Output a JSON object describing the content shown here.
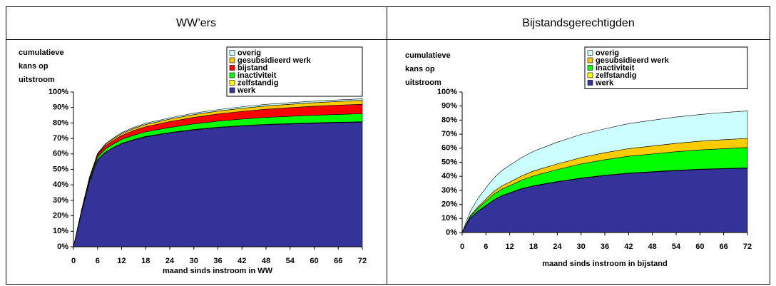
{
  "chart_data": [
    {
      "type": "stacked_area",
      "title": "WW’ers",
      "ylabel": [
        "cumulatieve",
        "kans op",
        "uitstroom"
      ],
      "xlabel": "maand sinds instroom in WW",
      "x": [
        0,
        2,
        4,
        6,
        8,
        10,
        12,
        15,
        18,
        24,
        30,
        36,
        42,
        48,
        54,
        60,
        66,
        72
      ],
      "xlim": [
        0,
        72
      ],
      "xticks": [
        0,
        6,
        12,
        18,
        24,
        30,
        36,
        42,
        48,
        54,
        60,
        66,
        72
      ],
      "ylim": [
        0,
        100
      ],
      "yticks": [
        {
          "value": 0,
          "label": "0%"
        },
        {
          "value": 10,
          "label": "10%"
        },
        {
          "value": 20,
          "label": "20%"
        },
        {
          "value": 30,
          "label": "30%"
        },
        {
          "value": 40,
          "label": "40%"
        },
        {
          "value": 50,
          "label": "50%"
        },
        {
          "value": 60,
          "label": "60%"
        },
        {
          "value": 70,
          "label": "70%"
        },
        {
          "value": 80,
          "label": "80%"
        },
        {
          "value": 90,
          "label": "90%"
        },
        {
          "value": 100,
          "label": "100%"
        }
      ],
      "series": [
        {
          "name": "werk",
          "color": "#333399",
          "values": [
            0,
            22,
            42,
            56,
            61,
            64,
            66.5,
            69,
            71,
            73.5,
            75.5,
            77,
            78,
            78.8,
            79.3,
            79.8,
            80.2,
            80.5
          ]
        },
        {
          "name": "zelfstandig",
          "color": "#ffff00",
          "values": [
            0,
            0.3,
            0.3,
            0.3,
            0.3,
            0.3,
            0.3,
            0.3,
            0.3,
            0.3,
            0.3,
            0.3,
            0.3,
            0.3,
            0.3,
            0.3,
            0.3,
            0.3
          ]
        },
        {
          "name": "inactiviteit",
          "color": "#00ff00",
          "values": [
            0,
            0.5,
            1,
            1.5,
            2,
            2.2,
            2.5,
            2.8,
            3,
            3.3,
            3.6,
            3.9,
            4.2,
            4.5,
            4.7,
            4.9,
            5,
            5.2
          ]
        },
        {
          "name": "bijstand",
          "color": "#ff0000",
          "values": [
            0,
            0.5,
            1,
            1.5,
            2,
            2.3,
            2.6,
            3,
            3.3,
            3.8,
            4.2,
            4.6,
            5,
            5.3,
            5.6,
            5.8,
            6,
            6.1
          ]
        },
        {
          "name": "gesubsidieerd werk",
          "color": "#ffcc00",
          "values": [
            0,
            0.2,
            0.4,
            0.6,
            0.8,
            1,
            1.1,
            1.3,
            1.4,
            1.6,
            1.8,
            1.9,
            2,
            2.1,
            2.2,
            2.3,
            2.4,
            2.5
          ]
        },
        {
          "name": "overig",
          "color": "#ccffff",
          "values": [
            0,
            0.2,
            0.3,
            0.4,
            0.5,
            0.6,
            0.7,
            0.7,
            0.8,
            0.8,
            0.9,
            0.9,
            1,
            1,
            1,
            1,
            1,
            1
          ]
        }
      ]
    },
    {
      "type": "stacked_area",
      "title": "Bijstandsgerechtigden",
      "ylabel": [
        "cumulatieve",
        "kans op",
        "uitstroom"
      ],
      "xlabel": "maand sinds instroom in bijstand",
      "x": [
        0,
        2,
        4,
        6,
        8,
        10,
        12,
        15,
        18,
        24,
        30,
        36,
        42,
        48,
        54,
        60,
        66,
        72
      ],
      "xlim": [
        0,
        72
      ],
      "xticks": [
        0,
        6,
        12,
        18,
        24,
        30,
        36,
        42,
        48,
        54,
        60,
        66,
        72
      ],
      "ylim": [
        0,
        100
      ],
      "yticks": [
        {
          "value": 0,
          "label": "0%"
        },
        {
          "value": 10,
          "label": "10%"
        },
        {
          "value": 20,
          "label": "20%"
        },
        {
          "value": 30,
          "label": "30%"
        },
        {
          "value": 40,
          "label": "40%"
        },
        {
          "value": 50,
          "label": "50%"
        },
        {
          "value": 60,
          "label": "60%"
        },
        {
          "value": 70,
          "label": "70%"
        },
        {
          "value": 80,
          "label": "80%"
        },
        {
          "value": 90,
          "label": "90%"
        },
        {
          "value": 100,
          "label": "100%"
        }
      ],
      "series": [
        {
          "name": "werk",
          "color": "#333399",
          "values": [
            0,
            10,
            15,
            19,
            23,
            26,
            28,
            31,
            33,
            36,
            38.5,
            40.5,
            42,
            43,
            44,
            44.8,
            45.3,
            45.8
          ]
        },
        {
          "name": "zelfstandig",
          "color": "#ffff00",
          "values": [
            0,
            0.3,
            0.3,
            0.3,
            0.3,
            0.3,
            0.3,
            0.3,
            0.3,
            0.3,
            0.3,
            0.3,
            0.3,
            0.3,
            0.3,
            0.3,
            0.3,
            0.3
          ]
        },
        {
          "name": "inactiviteit",
          "color": "#00ff00",
          "values": [
            0,
            1,
            2,
            3,
            4,
            4.5,
            5,
            6,
            7,
            8.5,
            10,
            11,
            12,
            12.6,
            13.2,
            13.7,
            14.1,
            14.4
          ]
        },
        {
          "name": "gesubsidieerd werk",
          "color": "#ffcc00",
          "values": [
            0,
            0.5,
            1,
            1.5,
            2,
            2.3,
            2.6,
            3,
            3.5,
            4,
            4.5,
            5,
            5.4,
            5.7,
            6,
            6.2,
            6.4,
            6.5
          ]
        },
        {
          "name": "overig",
          "color": "#ccffff",
          "values": [
            0,
            3,
            6,
            8,
            9.5,
            11,
            12,
            13,
            14,
            15.5,
            16.5,
            17,
            17.8,
            18.3,
            18.7,
            19,
            19.3,
            19.5
          ]
        }
      ]
    }
  ]
}
